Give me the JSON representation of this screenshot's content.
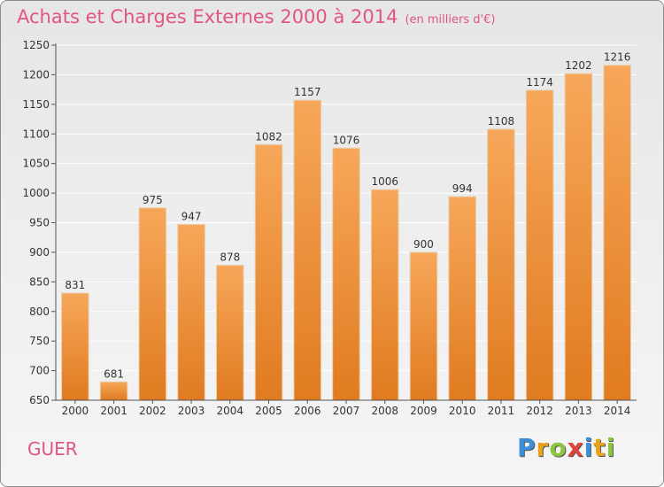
{
  "header": {
    "title": "Achats et Charges Externes 2000 à 2014",
    "subtitle": "(en milliers d'€)"
  },
  "footer": {
    "commune": "GUER",
    "logo": {
      "letters": [
        "P",
        "r",
        "o",
        "x",
        "i",
        "t",
        "i"
      ],
      "colors": [
        "#3a8fd8",
        "#e8a21c",
        "#8cc63f",
        "#e0443a",
        "#3a8fd8",
        "#e8a21c",
        "#8cc63f"
      ]
    }
  },
  "colors": {
    "bar_light": "#f7a75a",
    "bar_dark": "#e07b20",
    "title": "#e0567e"
  },
  "chart_data": {
    "type": "bar",
    "title": "Achats et Charges Externes 2000 à 2014",
    "categories": [
      "2000",
      "2001",
      "2002",
      "2003",
      "2004",
      "2005",
      "2006",
      "2007",
      "2008",
      "2009",
      "2010",
      "2011",
      "2012",
      "2013",
      "2014"
    ],
    "values": [
      831,
      681,
      975,
      947,
      878,
      1082,
      1157,
      1076,
      1006,
      900,
      994,
      1108,
      1174,
      1202,
      1216
    ],
    "ylim": [
      650,
      1250
    ],
    "yticks": [
      650,
      700,
      750,
      800,
      850,
      900,
      950,
      1000,
      1050,
      1100,
      1150,
      1200,
      1250
    ],
    "grid": true,
    "legend": "none"
  }
}
